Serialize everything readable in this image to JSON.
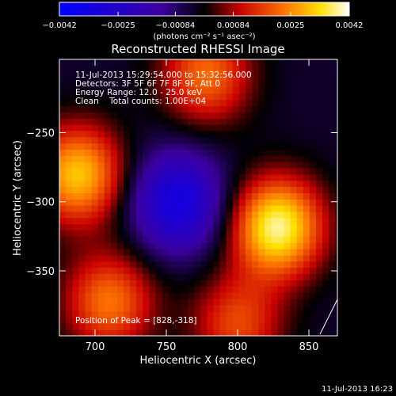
{
  "chart_data": {
    "type": "heatmap",
    "title": "Reconstructed RHESSI Image",
    "xlabel": "Heliocentric X (arcsec)",
    "ylabel": "Heliocentric Y (arcsec)",
    "xlim": [
      675,
      870
    ],
    "ylim": [
      -397,
      -197
    ],
    "x_ticks": [
      700,
      750,
      800,
      850
    ],
    "x_tick_labels": [
      "700",
      "750",
      "800",
      "850"
    ],
    "y_ticks": [
      -250,
      -300,
      -350
    ],
    "y_tick_labels": [
      "−250",
      "−300",
      "−350"
    ],
    "colorbar": {
      "range": [
        -0.0042,
        0.0042
      ],
      "ticks": [
        -0.0042,
        -0.0025,
        -0.00084,
        0.00084,
        0.0025,
        0.0042
      ],
      "tick_labels": [
        "−0.0042",
        "−0.0025",
        "−0.00084",
        "0.00084",
        "0.0025",
        "0.0042"
      ],
      "unit_label": "(photons cm⁻² s⁻¹ asec⁻²)"
    },
    "annotations": [
      "11-Jul-2013 15:29:54.000 to 15:32:56.000",
      "Detectors: 3F 5F 6F 7F 8F 9F, Att 0",
      "Energy Range: 12.0 - 25.0 keV",
      "Clean    Total counts: 1.00E+04"
    ],
    "peak_label": "Position of Peak = [828,-318]",
    "peak_position": [
      828,
      -318
    ],
    "timestamp": "11-Jul-2013 16:23",
    "sources": [
      {
        "x": 828,
        "y": -318,
        "level": 1.0
      },
      {
        "x": 688,
        "y": -280,
        "level": 0.82
      },
      {
        "x": 778,
        "y": -208,
        "level": 0.6
      },
      {
        "x": 710,
        "y": -372,
        "level": 0.62
      },
      {
        "x": 800,
        "y": -388,
        "level": 0.5
      },
      {
        "x": 758,
        "y": -300,
        "level": -0.7
      }
    ]
  }
}
